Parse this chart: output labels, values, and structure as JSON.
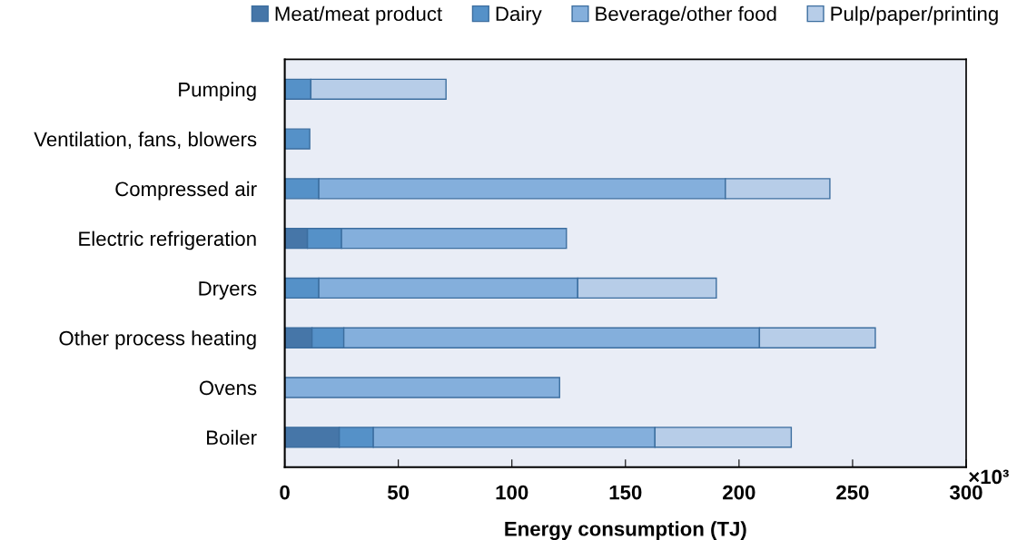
{
  "chart_data": {
    "type": "bar",
    "orientation": "horizontal",
    "stacked": true,
    "xlabel": "Energy consumption (TJ)",
    "categories": [
      "Pumping",
      "Ventilation, fans, blowers",
      "Compressed air",
      "Electric refrigeration",
      "Dryers",
      "Other process heating",
      "Ovens",
      "Boiler"
    ],
    "series": [
      {
        "name": "Meat/meat product",
        "color": "#4676a8",
        "values": [
          null,
          null,
          null,
          10,
          null,
          12,
          null,
          24
        ]
      },
      {
        "name": "Dairy",
        "color": "#5591c8",
        "values": [
          11.5,
          11,
          15,
          15,
          15,
          14,
          null,
          15
        ]
      },
      {
        "name": "Beverage/other food",
        "color": "#84afdc",
        "values": [
          null,
          null,
          179,
          99,
          114,
          183,
          121,
          124
        ]
      },
      {
        "name": "Pulp/paper/printing",
        "color": "#b7cde8",
        "values": [
          59.5,
          null,
          46,
          null,
          61,
          51,
          null,
          60
        ]
      }
    ],
    "xlim": [
      0,
      300
    ],
    "xticks": [
      0,
      50,
      100,
      150,
      200,
      250,
      300
    ],
    "annotations": [
      "×10³"
    ],
    "legend": "top",
    "grid": false
  }
}
